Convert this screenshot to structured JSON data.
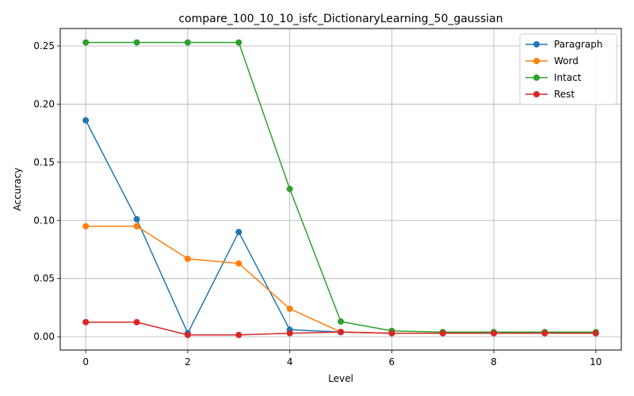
{
  "chart_data": {
    "type": "line",
    "title": "compare_100_10_10_isfc_DictionaryLearning_50_gaussian",
    "xlabel": "Level",
    "ylabel": "Accuracy",
    "x": [
      0,
      1,
      2,
      3,
      4,
      5,
      6,
      7,
      8,
      9,
      10
    ],
    "xlim": [
      -0.5,
      10.5
    ],
    "ylim": [
      -0.0115,
      0.265
    ],
    "xticks": [
      0,
      2,
      4,
      6,
      8,
      10
    ],
    "xtick_labels": [
      "0",
      "2",
      "4",
      "6",
      "8",
      "10"
    ],
    "yticks": [
      0.0,
      0.05,
      0.1,
      0.15,
      0.2,
      0.25
    ],
    "ytick_labels": [
      "0.00",
      "0.05",
      "0.10",
      "0.15",
      "0.20",
      "0.25"
    ],
    "grid": true,
    "legend_position": "top-right",
    "series": [
      {
        "name": "Paragraph",
        "color": "#1f77b4",
        "values": [
          0.186,
          0.101,
          0.003,
          0.09,
          0.006,
          0.004,
          0.003,
          0.003,
          0.003,
          0.003,
          0.003
        ]
      },
      {
        "name": "Word",
        "color": "#ff7f0e",
        "values": [
          0.095,
          0.095,
          0.067,
          0.063,
          0.024,
          0.004,
          0.003,
          0.003,
          0.003,
          0.003,
          0.003
        ]
      },
      {
        "name": "Intact",
        "color": "#2ca02c",
        "values": [
          0.253,
          0.253,
          0.253,
          0.253,
          0.127,
          0.013,
          0.005,
          0.004,
          0.004,
          0.004,
          0.004
        ]
      },
      {
        "name": "Rest",
        "color": "#d62728",
        "values": [
          0.0125,
          0.0125,
          0.0015,
          0.0015,
          0.003,
          0.004,
          0.003,
          0.003,
          0.003,
          0.003,
          0.003
        ]
      }
    ]
  }
}
